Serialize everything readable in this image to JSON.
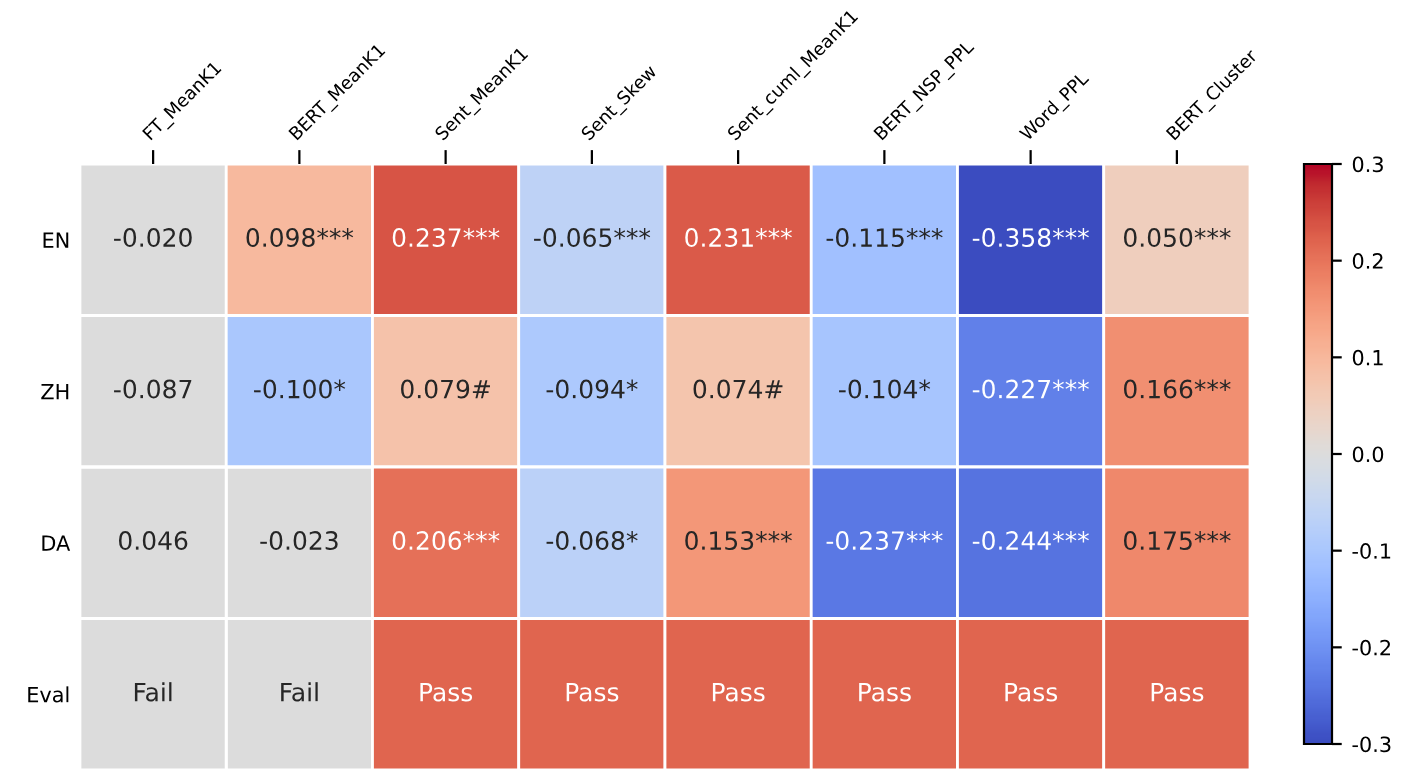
{
  "chart_data": {
    "type": "heatmap",
    "categories": [
      "FT_MeanK1",
      "BERT_MeanK1",
      "Sent_MeanK1",
      "Sent_Skew",
      "Sent_cuml_MeanK1",
      "BERT_NSP_PPL",
      "Word_PPL",
      "BERT_Cluster"
    ],
    "y_categories": [
      "EN",
      "ZH",
      "DA",
      "Eval"
    ],
    "cells": [
      [
        null,
        0.098,
        0.237,
        -0.065,
        0.231,
        -0.115,
        -0.358,
        0.05
      ],
      [
        null,
        -0.1,
        0.079,
        -0.094,
        0.074,
        -0.104,
        -0.227,
        0.166
      ],
      [
        null,
        null,
        0.206,
        -0.068,
        0.153,
        -0.237,
        -0.244,
        0.175
      ],
      [
        null,
        null,
        0.22,
        0.22,
        0.22,
        0.22,
        0.22,
        0.22
      ]
    ],
    "cell_labels": [
      [
        "-0.020",
        "0.098***",
        "0.237***",
        "-0.065***",
        "0.231***",
        "-0.115***",
        "-0.358***",
        "0.050***"
      ],
      [
        "-0.087",
        "-0.100*",
        "0.079#",
        "-0.094*",
        "0.074#",
        "-0.104*",
        "-0.227***",
        "0.166***"
      ],
      [
        "0.046",
        "-0.023",
        "0.206***",
        "-0.068*",
        "0.153***",
        "-0.237***",
        "-0.244***",
        "0.175***"
      ],
      [
        "Fail",
        "Fail",
        "Pass",
        "Pass",
        "Pass",
        "Pass",
        "Pass",
        "Pass"
      ]
    ],
    "clim": [
      -0.3,
      0.3
    ],
    "cticks": [
      -0.3,
      -0.2,
      -0.1,
      {
        "value": 0,
        "label": "0.0"
      },
      0.1,
      0.2,
      0.3
    ]
  }
}
